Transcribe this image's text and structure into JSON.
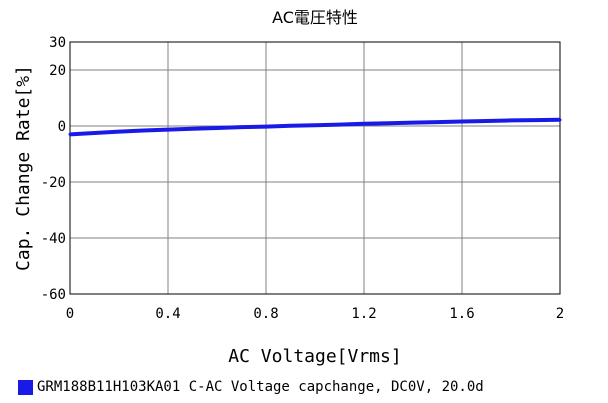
{
  "chart_data": {
    "type": "line",
    "title": "AC電圧特性",
    "xlabel": "AC Voltage[Vrms]",
    "ylabel": "Cap. Change Rate[%]",
    "xlim": [
      0,
      2
    ],
    "ylim": [
      -60,
      30
    ],
    "x_ticks": [
      "0",
      "0.4",
      "0.8",
      "1.2",
      "1.6",
      "2"
    ],
    "y_ticks": [
      "30",
      "20",
      "0",
      "-20",
      "-40",
      "-60"
    ],
    "grid": true,
    "series": [
      {
        "name": "GRM188B11H103KA01 C-AC Voltage capchange, DC0V, 20.0d",
        "color": "#1a1ae6",
        "x": [
          0,
          0.1,
          0.2,
          0.3,
          0.4,
          0.5,
          0.6,
          0.7,
          0.8,
          0.9,
          1.0,
          1.1,
          1.2,
          1.3,
          1.4,
          1.5,
          1.6,
          1.7,
          1.8,
          1.9,
          2.0
        ],
        "y": [
          -3.0,
          -2.5,
          -2.0,
          -1.6,
          -1.3,
          -1.0,
          -0.7,
          -0.4,
          -0.2,
          0.1,
          0.3,
          0.5,
          0.8,
          1.0,
          1.2,
          1.4,
          1.6,
          1.8,
          2.0,
          2.1,
          2.2
        ]
      }
    ]
  }
}
